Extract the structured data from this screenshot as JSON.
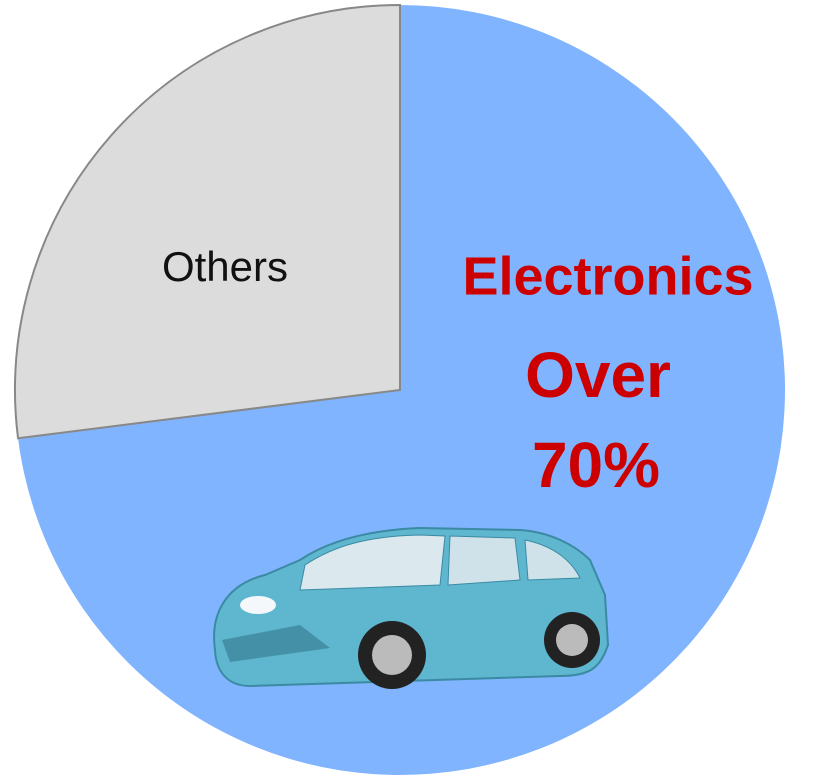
{
  "chart_data": {
    "type": "pie",
    "categories": [
      "Electronics",
      "Others"
    ],
    "values": [
      73,
      27
    ],
    "colors": [
      "#80b4ff",
      "#dcdcdc"
    ],
    "annotation": [
      "Over",
      "70%"
    ]
  }
}
